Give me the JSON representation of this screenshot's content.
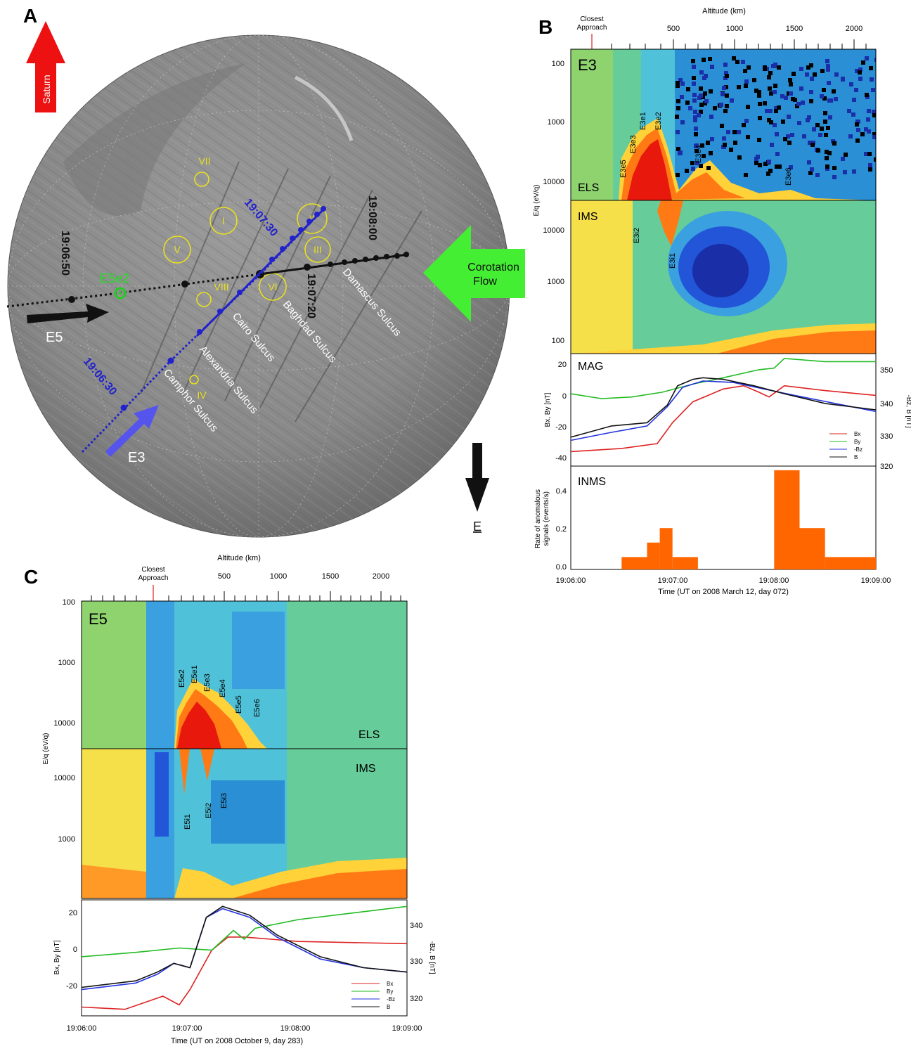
{
  "panel_labels": {
    "a": "A",
    "b": "B",
    "c": "C"
  },
  "map": {
    "saturn_label": "Saturn",
    "east_label": "E",
    "flow_line1": "Corotation",
    "flow_line2": "Flow",
    "flyby_e5_label": "E5",
    "flyby_e3_label": "E3",
    "e5e2_label": "E5e2",
    "regions": [
      "I",
      "II",
      "III",
      "IV",
      "V",
      "VI",
      "VII",
      "VIII"
    ],
    "sulci": [
      "Damascus Sulcus",
      "Baghdad Sulcus",
      "Cairo Sulcus",
      "Alexandria Sulcus",
      "Camphor Sulcus"
    ],
    "time_labels_e5": [
      "19:06:50",
      "19:07:20",
      "19:08:00"
    ],
    "time_labels_e3": [
      "19:06:30",
      "19:07:30"
    ],
    "colors": {
      "saturn_arrow": "#ee1111",
      "flow_arrow": "#44ee33",
      "e3_track": "#2222cc",
      "e5_track": "#111111",
      "region_circles": "#e8e020",
      "e5e2_marker": "#22cc22",
      "e3_arrow": "#5555ee"
    }
  },
  "panel_b": {
    "flyby": "E3",
    "closest_approach": "Closest\nApproach",
    "altitude_title": "Altitude (km)",
    "altitude_ticks": [
      "500",
      "1000",
      "1500",
      "2000"
    ],
    "els_label": "ELS",
    "ims_label": "IMS",
    "mag_label": "MAG",
    "inms_label": "INMS",
    "eq_axis_label": "E/q (eV/q)",
    "els_yticks": [
      "100",
      "1000",
      "10000"
    ],
    "ims_yticks": [
      "10000",
      "1000",
      "100"
    ],
    "els_features": [
      "E3e5",
      "E3e3",
      "E3e1",
      "E3e2",
      "E3e4",
      "E3e6"
    ],
    "ims_features": [
      "E3i2",
      "E3i1"
    ],
    "mag_left_label": "Bx, By [nT]",
    "mag_right_label": "-Bz, B [nT]",
    "mag_left_ticks": [
      "20",
      "0",
      "-20",
      "-40"
    ],
    "mag_right_ticks": [
      "350",
      "340",
      "330",
      "320"
    ],
    "mag_legend": [
      "Bx",
      "By",
      "-Bz",
      "B"
    ],
    "inms_axis_label1": "Rate of anomalous",
    "inms_axis_label2": "signals (events/s)",
    "inms_yticks": [
      "0.4",
      "0.2",
      "0.0"
    ],
    "x_ticks": [
      "19:06:00",
      "19:07:00",
      "19:08:00",
      "19:09:00"
    ],
    "x_title": "Time (UT on 2008 March 12, day 072)"
  },
  "panel_c": {
    "flyby": "E5",
    "closest_approach": "Closest\nApproach",
    "altitude_title": "Altitude (km)",
    "altitude_ticks": [
      "500",
      "1000",
      "1500",
      "2000"
    ],
    "els_label": "ELS",
    "ims_label": "IMS",
    "eq_axis_label": "E/q (eV/q)",
    "els_yticks": [
      "100",
      "1000",
      "10000"
    ],
    "ims_yticks": [
      "10000",
      "1000"
    ],
    "els_features": [
      "E5e2",
      "E5e1",
      "E5e3",
      "E5e4",
      "E5e5",
      "E5e6"
    ],
    "ims_features": [
      "E5i1",
      "E5i2",
      "E5i3"
    ],
    "mag_left_label": "Bx, By [nT]",
    "mag_right_label": "-Bz, B [nT]",
    "mag_left_ticks": [
      "20",
      "0",
      "-20"
    ],
    "mag_right_ticks": [
      "340",
      "330",
      "320"
    ],
    "mag_legend": [
      "Bx",
      "By",
      "-Bz",
      "B"
    ],
    "x_ticks": [
      "19:06:00",
      "19:07:00",
      "19:08:00",
      "19:09:00"
    ],
    "x_title": "Time (UT on 2008 October 9, day 283)"
  },
  "chart_data": [
    {
      "type": "line",
      "panel": "B MAG",
      "x_unit": "minutes after 19:06:00",
      "xlim": [
        0,
        3
      ],
      "ylim": [
        -45,
        25
      ],
      "series": [
        {
          "name": "Bx",
          "color": "#dd2222",
          "x": [
            0,
            0.5,
            0.85,
            1.0,
            1.2,
            1.5,
            1.7,
            1.85,
            1.95,
            2.1,
            2.5,
            3.0
          ],
          "y": [
            -36,
            -34,
            -31,
            -18,
            -5,
            3,
            5,
            1,
            -2,
            5,
            2,
            -1
          ]
        },
        {
          "name": "By",
          "color": "#22bb22",
          "x": [
            0,
            0.3,
            0.6,
            0.9,
            1.2,
            1.5,
            1.85,
            2.0,
            2.1,
            2.5,
            3.0
          ],
          "y": [
            0,
            -3,
            -2,
            1,
            6,
            10,
            15,
            16,
            22,
            20,
            20
          ]
        },
        {
          "name": "-Bz",
          "color": "#2233dd",
          "x": [
            0,
            0.4,
            0.75,
            0.95,
            1.1,
            1.3,
            1.6,
            1.9,
            2.2,
            2.6,
            3.0
          ],
          "y": [
            -29,
            -24,
            -20,
            -8,
            4,
            8,
            7,
            3,
            -1,
            -6,
            -11
          ]
        },
        {
          "name": "B",
          "color": "#111111",
          "x": [
            0,
            0.4,
            0.75,
            0.95,
            1.05,
            1.2,
            1.3,
            1.5,
            1.8,
            2.1,
            2.5,
            3.0
          ],
          "y": [
            -27,
            -20,
            -18,
            -7,
            5,
            9,
            10,
            9,
            5,
            0,
            -6,
            -10
          ]
        }
      ]
    },
    {
      "type": "bar",
      "panel": "B INMS",
      "bin_edges_min": [
        0.5,
        0.75,
        0.875,
        1.0,
        1.25,
        1.5,
        2.0,
        2.25,
        2.5,
        3.0
      ],
      "values": [
        0.06,
        0.13,
        0.2,
        0.06,
        0.0,
        0.0,
        0.48,
        0.2,
        0.06
      ],
      "ylim": [
        0,
        0.5
      ],
      "color": "#ff6600"
    },
    {
      "type": "line",
      "panel": "C MAG",
      "x_unit": "minutes after 19:06:00",
      "xlim": [
        0,
        3
      ],
      "ylim": [
        -30,
        23
      ],
      "series": [
        {
          "name": "Bx",
          "color": "#dd2222",
          "x": [
            0,
            0.4,
            0.75,
            0.9,
            1.0,
            1.2,
            1.35,
            1.5,
            2.0,
            3.0
          ],
          "y": [
            -26,
            -27,
            -21,
            -25,
            -18,
            0,
            6,
            6,
            4,
            3
          ]
        },
        {
          "name": "By",
          "color": "#22bb22",
          "x": [
            0,
            0.5,
            0.9,
            1.2,
            1.4,
            1.5,
            1.6,
            2.0,
            2.5,
            3.0
          ],
          "y": [
            -3,
            -1,
            1,
            0,
            9,
            5,
            10,
            14,
            17,
            20
          ]
        },
        {
          "name": "-Bz",
          "color": "#2233dd",
          "x": [
            0,
            0.5,
            0.7,
            0.85,
            1.0,
            1.15,
            1.3,
            1.55,
            1.8,
            2.2,
            2.6,
            3.0
          ],
          "y": [
            -18,
            -15,
            -11,
            -6,
            -8,
            15,
            19,
            15,
            6,
            -4,
            -8,
            -10
          ]
        },
        {
          "name": "B",
          "color": "#111111",
          "x": [
            0,
            0.5,
            0.7,
            0.85,
            1.0,
            1.15,
            1.3,
            1.55,
            1.8,
            2.2,
            2.6,
            3.0
          ],
          "y": [
            -17,
            -14,
            -10,
            -6,
            -8,
            15,
            20,
            16,
            7,
            -3,
            -8,
            -10
          ]
        }
      ]
    }
  ]
}
